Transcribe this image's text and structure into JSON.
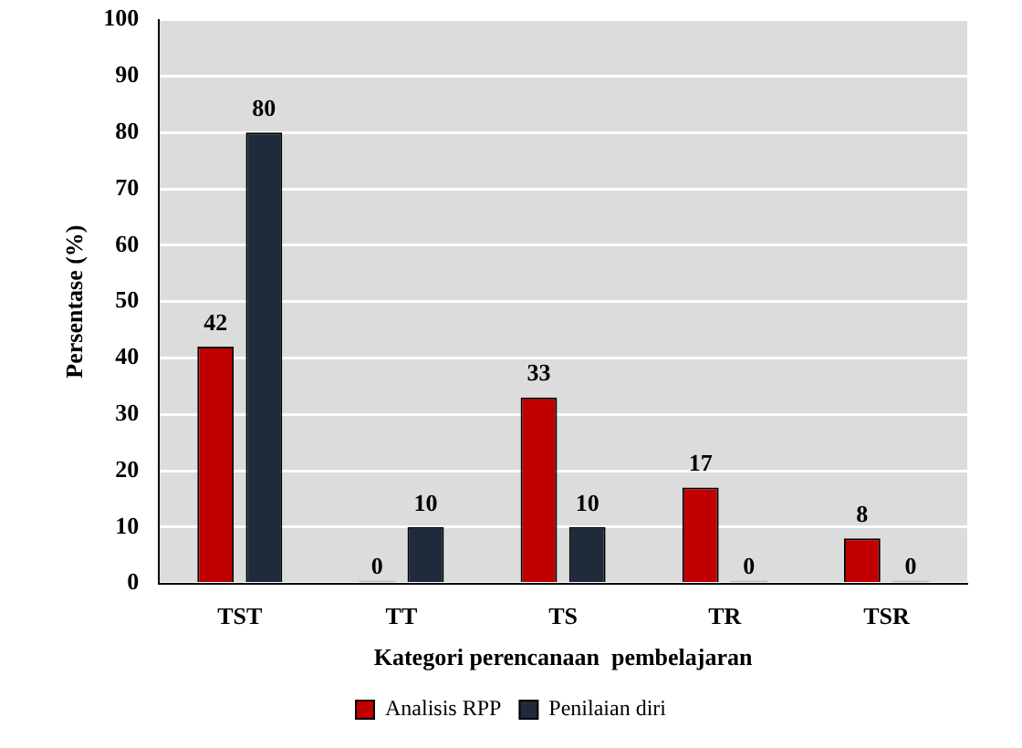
{
  "chart_data": {
    "type": "bar",
    "xlabel": "Kategori perencanaan  pembelajaran",
    "ylabel": "Persentase (%)",
    "categories": [
      "TST",
      "TT",
      "TS",
      "TR",
      "TSR"
    ],
    "series": [
      {
        "name": "Analisis RPP",
        "color": "#c00000",
        "values": [
          42,
          0,
          33,
          17,
          8
        ]
      },
      {
        "name": "Penilaian diri",
        "color": "#1f2a3a",
        "values": [
          80,
          10,
          10,
          0,
          0
        ]
      }
    ],
    "ylim": [
      0,
      100
    ],
    "yticks": [
      0,
      10,
      20,
      30,
      40,
      50,
      60,
      70,
      80,
      90,
      100
    ],
    "grid": "y",
    "legend": "bottom",
    "data_labels": true
  }
}
